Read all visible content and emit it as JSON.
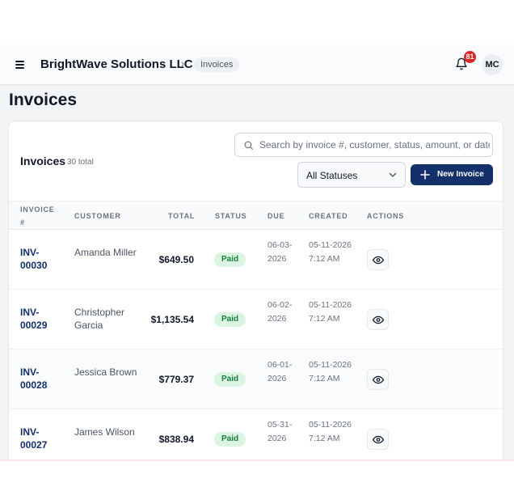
{
  "header": {
    "company": "BrightWave Solutions LLC",
    "breadcrumb_sep": "›",
    "breadcrumb_current": "Invoices",
    "notification_count": "81",
    "user_initials": "MC"
  },
  "page": {
    "title": "Invoices"
  },
  "card": {
    "title": "Invoices",
    "count_text": "30 total",
    "search_placeholder": "Search by invoice #, customer, status, amount, or date...",
    "status_filter": "All Statuses",
    "new_button": "New Invoice"
  },
  "table": {
    "headers": [
      "INVOICE #",
      "CUSTOMER",
      "TOTAL",
      "STATUS",
      "DUE",
      "CREATED",
      "ACTIONS"
    ],
    "rows": [
      {
        "invoice": "INV-00030",
        "customer": "Amanda Miller",
        "total": "$649.50",
        "status": "Paid",
        "due": "06-03-2026",
        "created": "05-11-2026 7:12 AM"
      },
      {
        "invoice": "INV-00029",
        "customer": "Christopher Garcia",
        "total": "$1,135.54",
        "status": "Paid",
        "due": "06-02-2026",
        "created": "05-11-2026 7:12 AM"
      },
      {
        "invoice": "INV-00028",
        "customer": "Jessica Brown",
        "total": "$779.37",
        "status": "Paid",
        "due": "06-01-2026",
        "created": "05-11-2026 7:12 AM"
      },
      {
        "invoice": "INV-00027",
        "customer": "James Wilson",
        "total": "$838.94",
        "status": "Paid",
        "due": "05-31-2026",
        "created": "05-11-2026 7:12 AM"
      }
    ]
  },
  "icons": {
    "menu": "menu-icon",
    "bell": "bell-icon",
    "search": "search-icon",
    "chevron": "chevron-down-icon",
    "plus": "plus-icon",
    "view": "eye-icon"
  },
  "colors": {
    "accent": "#13306b",
    "badge": "#dc2626",
    "paid_bg": "#dcf5e3",
    "paid_text": "#15803d"
  }
}
